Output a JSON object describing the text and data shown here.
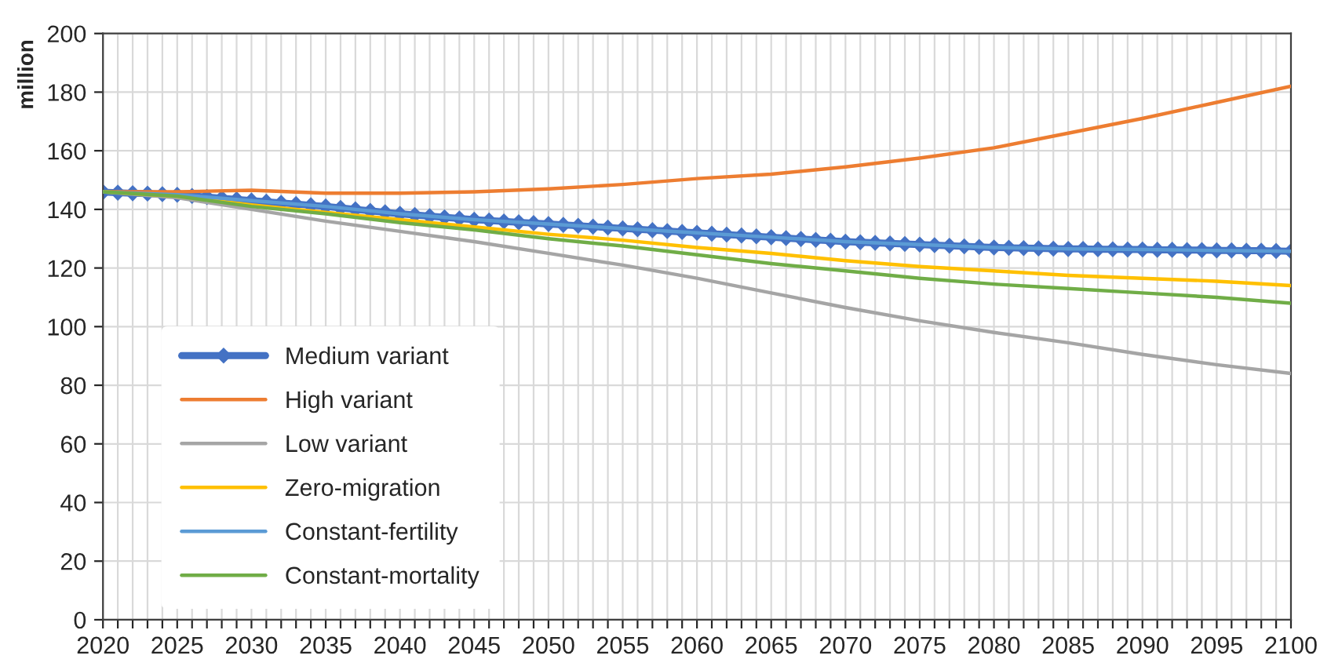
{
  "chart_data": {
    "type": "line",
    "ylabel": "million",
    "xlim": [
      2020,
      2100
    ],
    "ylim": [
      0,
      200
    ],
    "yticks": [
      0,
      20,
      40,
      60,
      80,
      100,
      120,
      140,
      160,
      180,
      200
    ],
    "xticks": [
      2020,
      {
        "value": 2021,
        "label": null
      },
      {
        "value": 2022,
        "label": null
      },
      {
        "value": 2023,
        "label": null
      },
      {
        "value": 2024,
        "label": null
      },
      2025,
      {
        "value": 2026,
        "label": null
      },
      {
        "value": 2027,
        "label": null
      },
      {
        "value": 2028,
        "label": null
      },
      {
        "value": 2029,
        "label": null
      },
      2030,
      {
        "value": 2031,
        "label": null
      },
      {
        "value": 2032,
        "label": null
      },
      {
        "value": 2033,
        "label": null
      },
      {
        "value": 2034,
        "label": null
      },
      2035,
      {
        "value": 2036,
        "label": null
      },
      {
        "value": 2037,
        "label": null
      },
      {
        "value": 2038,
        "label": null
      },
      {
        "value": 2039,
        "label": null
      },
      2040,
      {
        "value": 2041,
        "label": null
      },
      {
        "value": 2042,
        "label": null
      },
      {
        "value": 2043,
        "label": null
      },
      {
        "value": 2044,
        "label": null
      },
      2045,
      {
        "value": 2046,
        "label": null
      },
      {
        "value": 2047,
        "label": null
      },
      {
        "value": 2048,
        "label": null
      },
      {
        "value": 2049,
        "label": null
      },
      2050,
      {
        "value": 2051,
        "label": null
      },
      {
        "value": 2052,
        "label": null
      },
      {
        "value": 2053,
        "label": null
      },
      {
        "value": 2054,
        "label": null
      },
      2055,
      {
        "value": 2056,
        "label": null
      },
      {
        "value": 2057,
        "label": null
      },
      {
        "value": 2058,
        "label": null
      },
      {
        "value": 2059,
        "label": null
      },
      2060,
      {
        "value": 2061,
        "label": null
      },
      {
        "value": 2062,
        "label": null
      },
      {
        "value": 2063,
        "label": null
      },
      {
        "value": 2064,
        "label": null
      },
      2065,
      {
        "value": 2066,
        "label": null
      },
      {
        "value": 2067,
        "label": null
      },
      {
        "value": 2068,
        "label": null
      },
      {
        "value": 2069,
        "label": null
      },
      2070,
      {
        "value": 2071,
        "label": null
      },
      {
        "value": 2072,
        "label": null
      },
      {
        "value": 2073,
        "label": null
      },
      {
        "value": 2074,
        "label": null
      },
      2075,
      {
        "value": 2076,
        "label": null
      },
      {
        "value": 2077,
        "label": null
      },
      {
        "value": 2078,
        "label": null
      },
      {
        "value": 2079,
        "label": null
      },
      2080,
      {
        "value": 2081,
        "label": null
      },
      {
        "value": 2082,
        "label": null
      },
      {
        "value": 2083,
        "label": null
      },
      {
        "value": 2084,
        "label": null
      },
      2085,
      {
        "value": 2086,
        "label": null
      },
      {
        "value": 2087,
        "label": null
      },
      {
        "value": 2088,
        "label": null
      },
      {
        "value": 2089,
        "label": null
      },
      2090,
      {
        "value": 2091,
        "label": null
      },
      {
        "value": 2092,
        "label": null
      },
      {
        "value": 2093,
        "label": null
      },
      {
        "value": 2094,
        "label": null
      },
      2095,
      {
        "value": 2096,
        "label": null
      },
      {
        "value": 2097,
        "label": null
      },
      {
        "value": 2098,
        "label": null
      },
      {
        "value": 2099,
        "label": null
      },
      2100
    ],
    "grid": true,
    "legend": "bottom left",
    "line_style": "solid",
    "series": [
      {
        "name": "Medium variant",
        "color": "#4472c4",
        "marker": "diamond",
        "x": [
          2020,
          2021,
          2022,
          2023,
          2024,
          2025,
          2026,
          2027,
          2028,
          2029,
          2030,
          2031,
          2032,
          2033,
          2034,
          2035,
          2036,
          2037,
          2038,
          2039,
          2040,
          2041,
          2042,
          2043,
          2044,
          2045,
          2046,
          2047,
          2048,
          2049,
          2050,
          2051,
          2052,
          2053,
          2054,
          2055,
          2056,
          2057,
          2058,
          2059,
          2060,
          2061,
          2062,
          2063,
          2064,
          2065,
          2066,
          2067,
          2068,
          2069,
          2070,
          2071,
          2072,
          2073,
          2074,
          2075,
          2076,
          2077,
          2078,
          2079,
          2080,
          2081,
          2082,
          2083,
          2084,
          2085,
          2086,
          2087,
          2088,
          2089,
          2090,
          2091,
          2092,
          2093,
          2094,
          2095,
          2096,
          2097,
          2098,
          2099,
          2100
        ],
        "values": [
          145.9,
          145.7,
          145.5,
          145.4,
          145.2,
          145.0,
          144.6,
          144.2,
          143.8,
          143.4,
          143.0,
          142.6,
          142.2,
          141.8,
          141.4,
          141.0,
          140.5,
          140.0,
          139.5,
          139.0,
          138.5,
          138.1,
          137.7,
          137.3,
          136.9,
          136.5,
          136.2,
          135.9,
          135.6,
          135.3,
          135.0,
          134.7,
          134.4,
          134.1,
          133.8,
          133.5,
          133.2,
          132.9,
          132.6,
          132.3,
          132.0,
          131.7,
          131.4,
          131.1,
          130.8,
          130.5,
          130.2,
          129.9,
          129.6,
          129.3,
          129.0,
          128.8,
          128.6,
          128.4,
          128.2,
          128.0,
          127.8,
          127.6,
          127.4,
          127.2,
          127.0,
          126.9,
          126.8,
          126.7,
          126.6,
          126.5,
          126.5,
          126.4,
          126.4,
          126.3,
          126.3,
          126.2,
          126.2,
          126.1,
          126.1,
          126.0,
          126.0,
          125.9,
          125.9,
          125.8,
          125.7
        ]
      },
      {
        "name": "High variant",
        "color": "#ed7d31",
        "x": [
          2020,
          2025,
          2030,
          2035,
          2040,
          2045,
          2050,
          2055,
          2060,
          2065,
          2070,
          2075,
          2080,
          2085,
          2090,
          2095,
          2100
        ],
        "values": [
          146,
          146,
          146.5,
          145.5,
          145.5,
          146,
          147,
          148.5,
          150.5,
          152,
          154.5,
          157.5,
          161,
          166,
          171,
          176.5,
          182
        ]
      },
      {
        "name": "Low variant",
        "color": "#a5a5a5",
        "x": [
          2020,
          2025,
          2030,
          2035,
          2040,
          2045,
          2050,
          2055,
          2060,
          2065,
          2070,
          2075,
          2080,
          2085,
          2090,
          2095,
          2100
        ],
        "values": [
          146,
          144,
          140,
          136,
          132.5,
          129,
          125,
          121,
          116.5,
          111.5,
          106.5,
          102,
          98,
          94.5,
          90.5,
          87,
          84
        ]
      },
      {
        "name": "Zero-migration",
        "color": "#ffc000",
        "x": [
          2020,
          2025,
          2030,
          2035,
          2040,
          2045,
          2050,
          2055,
          2060,
          2065,
          2070,
          2075,
          2080,
          2085,
          2090,
          2095,
          2100
        ],
        "values": [
          146,
          144.5,
          141.5,
          139,
          136.5,
          134,
          131.5,
          129.5,
          127,
          125,
          122.5,
          120.5,
          119,
          117.5,
          116.5,
          115.5,
          114
        ]
      },
      {
        "name": "Constant-fertility",
        "color": "#5b9bd5",
        "x": [
          2020,
          2025,
          2030,
          2035,
          2040,
          2045,
          2050,
          2055,
          2060,
          2065,
          2070,
          2075,
          2080,
          2085,
          2090,
          2095,
          2100
        ],
        "values": [
          145.9,
          145,
          143,
          141,
          138.5,
          136.5,
          135,
          133.5,
          132,
          130.5,
          129,
          128,
          127,
          126.5,
          126.3,
          126,
          125.7
        ]
      },
      {
        "name": "Constant-mortality",
        "color": "#70ad47",
        "x": [
          2020,
          2025,
          2030,
          2035,
          2040,
          2045,
          2050,
          2055,
          2060,
          2065,
          2070,
          2075,
          2080,
          2085,
          2090,
          2095,
          2100
        ],
        "values": [
          146,
          144.5,
          141,
          138.5,
          135.5,
          133,
          130,
          127.5,
          124.5,
          121.5,
          119,
          116.5,
          114.5,
          113,
          111.5,
          110,
          108
        ]
      }
    ]
  }
}
